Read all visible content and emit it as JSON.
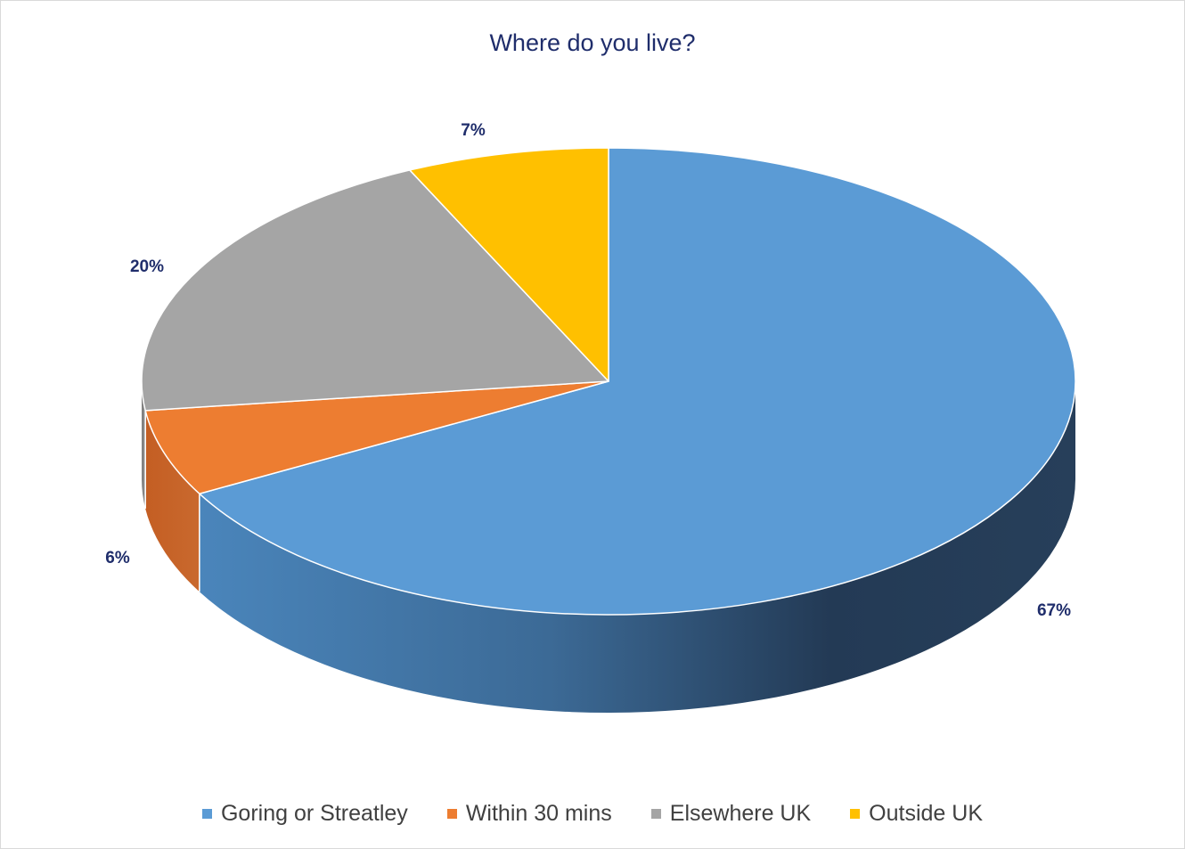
{
  "chart_data": {
    "type": "pie",
    "title": "Where do you live?",
    "style": "3d",
    "legend_position": "bottom",
    "categories": [
      "Goring or Streatley",
      "Within 30 mins",
      "Elsewhere UK",
      "Outside UK"
    ],
    "values": [
      67,
      6,
      20,
      7
    ],
    "labels": [
      "67%",
      "6%",
      "20%",
      "7%"
    ],
    "colors": [
      "#5b9bd5",
      "#ed7d31",
      "#a5a5a5",
      "#ffc000"
    ]
  }
}
